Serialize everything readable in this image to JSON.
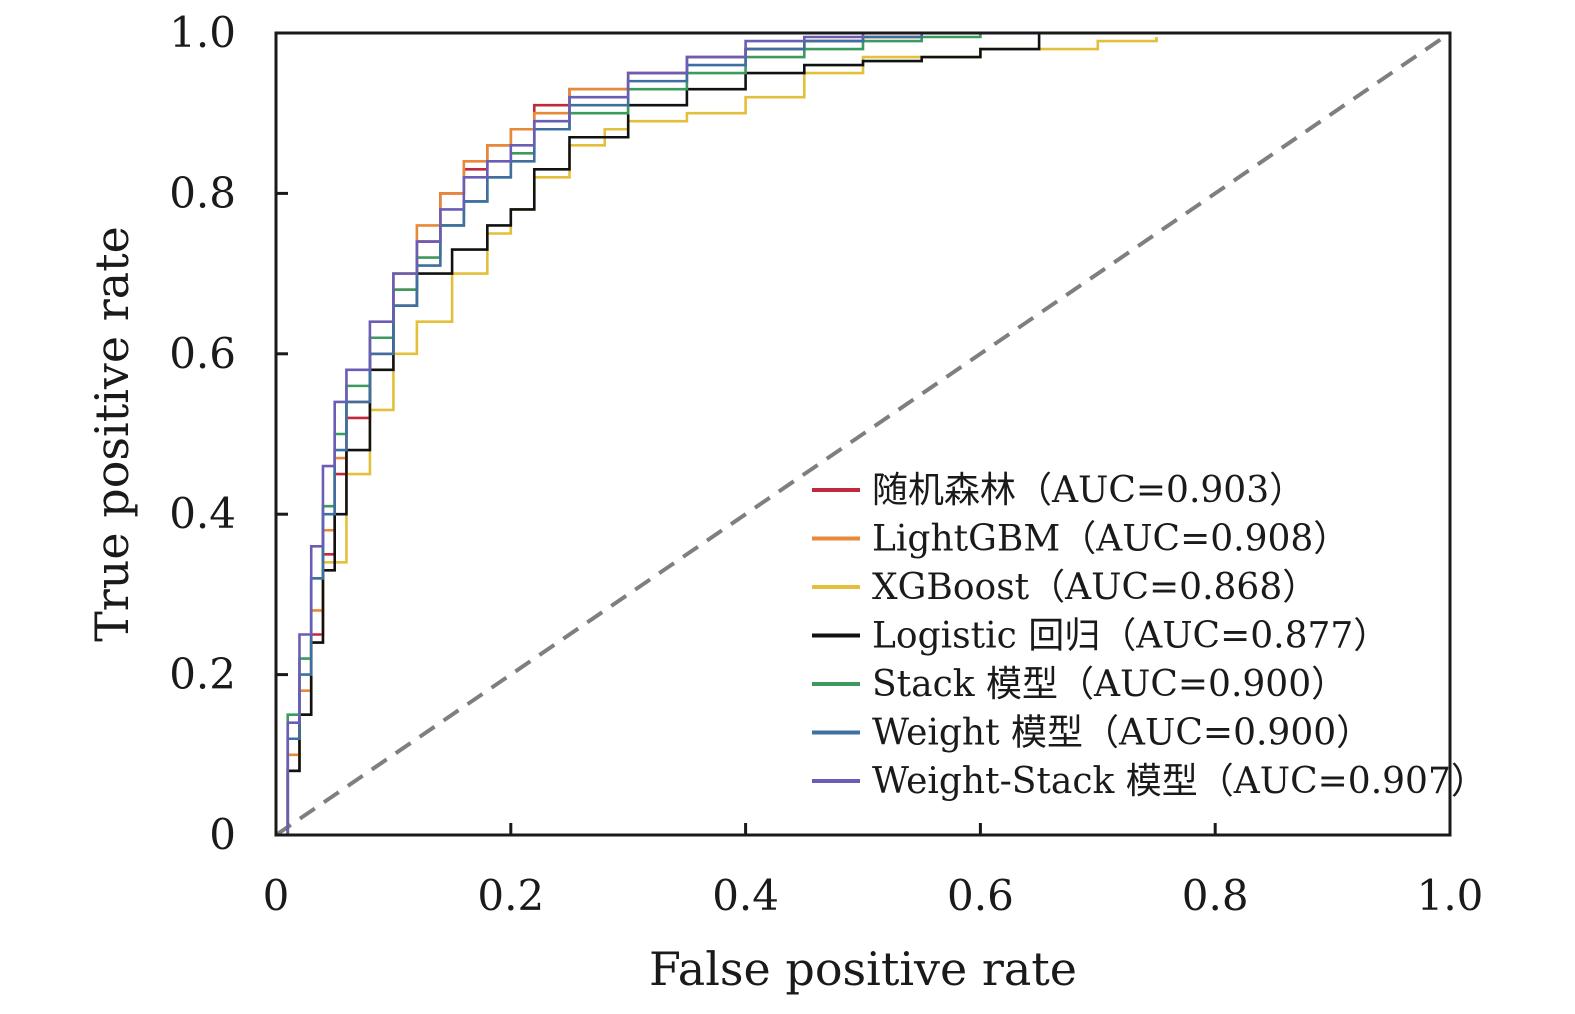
{
  "chart_data": {
    "type": "line",
    "title": "",
    "xlabel": "False positive rate",
    "ylabel": "True positive rate",
    "xlim": [
      0,
      1.0
    ],
    "ylim": [
      0,
      1.0
    ],
    "x_ticks": [
      0,
      0.2,
      0.4,
      0.6,
      0.8,
      1.0
    ],
    "y_ticks": [
      0,
      0.2,
      0.4,
      0.6,
      0.8,
      1.0
    ],
    "x_tick_labels": [
      "0",
      "0.2",
      "0.4",
      "0.6",
      "0.8",
      "1.0"
    ],
    "y_tick_labels": [
      "0",
      "0.2",
      "0.4",
      "0.6",
      "0.8",
      "1.0"
    ],
    "grid": false,
    "legend_position": "bottom-right",
    "reference_line": {
      "x": [
        0,
        1
      ],
      "y": [
        0,
        1
      ],
      "style": "dashed",
      "color": "#7f7f7f"
    },
    "series": [
      {
        "name": "随机森林（AUC=0.903）",
        "color": "#c0283c",
        "x": [
          0,
          0.01,
          0.02,
          0.03,
          0.04,
          0.05,
          0.06,
          0.08,
          0.1,
          0.12,
          0.14,
          0.16,
          0.18,
          0.2,
          0.22,
          0.25,
          0.3,
          0.35,
          0.4,
          0.45,
          0.5,
          0.55,
          0.6
        ],
        "y": [
          0,
          0.08,
          0.15,
          0.25,
          0.35,
          0.45,
          0.52,
          0.6,
          0.68,
          0.74,
          0.8,
          0.83,
          0.86,
          0.88,
          0.91,
          0.93,
          0.95,
          0.97,
          0.98,
          0.99,
          0.995,
          1.0,
          1.0
        ]
      },
      {
        "name": "LightGBM（AUC=0.908）",
        "color": "#e8893a",
        "x": [
          0,
          0.01,
          0.02,
          0.03,
          0.04,
          0.05,
          0.06,
          0.08,
          0.1,
          0.12,
          0.14,
          0.16,
          0.18,
          0.2,
          0.22,
          0.25,
          0.3,
          0.35,
          0.4,
          0.45,
          0.5,
          0.55,
          0.6
        ],
        "y": [
          0,
          0.1,
          0.18,
          0.28,
          0.38,
          0.47,
          0.54,
          0.62,
          0.7,
          0.76,
          0.8,
          0.84,
          0.86,
          0.88,
          0.9,
          0.93,
          0.95,
          0.97,
          0.98,
          0.99,
          0.995,
          1.0,
          1.0
        ]
      },
      {
        "name": "XGBoost（AUC=0.868）",
        "color": "#e3bf3b",
        "x": [
          0,
          0.01,
          0.02,
          0.03,
          0.04,
          0.06,
          0.08,
          0.1,
          0.12,
          0.15,
          0.18,
          0.2,
          0.22,
          0.25,
          0.28,
          0.3,
          0.35,
          0.4,
          0.45,
          0.5,
          0.55,
          0.6,
          0.65,
          0.7,
          0.75
        ],
        "y": [
          0,
          0.08,
          0.15,
          0.24,
          0.34,
          0.45,
          0.53,
          0.6,
          0.64,
          0.7,
          0.75,
          0.78,
          0.82,
          0.86,
          0.88,
          0.89,
          0.9,
          0.92,
          0.95,
          0.97,
          0.97,
          0.98,
          0.98,
          0.99,
          0.995
        ]
      },
      {
        "name": "Logistic 回归（AUC=0.877）",
        "color": "#111111",
        "x": [
          0,
          0.01,
          0.02,
          0.03,
          0.04,
          0.05,
          0.06,
          0.08,
          0.1,
          0.12,
          0.15,
          0.18,
          0.2,
          0.22,
          0.25,
          0.3,
          0.35,
          0.4,
          0.45,
          0.5,
          0.55,
          0.6,
          0.65
        ],
        "y": [
          0,
          0.08,
          0.15,
          0.24,
          0.33,
          0.4,
          0.48,
          0.58,
          0.66,
          0.7,
          0.73,
          0.76,
          0.78,
          0.83,
          0.87,
          0.91,
          0.93,
          0.95,
          0.96,
          0.965,
          0.97,
          0.98,
          1.0
        ]
      },
      {
        "name": "Stack 模型（AUC=0.900）",
        "color": "#3c9a5f",
        "x": [
          0,
          0.01,
          0.02,
          0.03,
          0.04,
          0.05,
          0.06,
          0.08,
          0.1,
          0.12,
          0.14,
          0.16,
          0.18,
          0.2,
          0.22,
          0.25,
          0.3,
          0.35,
          0.4,
          0.45,
          0.5,
          0.55,
          0.6
        ],
        "y": [
          0,
          0.15,
          0.22,
          0.32,
          0.41,
          0.5,
          0.56,
          0.62,
          0.68,
          0.72,
          0.76,
          0.79,
          0.82,
          0.85,
          0.88,
          0.9,
          0.93,
          0.95,
          0.97,
          0.98,
          0.99,
          0.995,
          1.0
        ]
      },
      {
        "name": "Weight 模型（AUC=0.900）",
        "color": "#3f6fa0",
        "x": [
          0,
          0.01,
          0.02,
          0.03,
          0.04,
          0.05,
          0.06,
          0.08,
          0.1,
          0.12,
          0.14,
          0.16,
          0.18,
          0.2,
          0.22,
          0.25,
          0.3,
          0.35,
          0.4,
          0.45,
          0.5,
          0.55
        ],
        "y": [
          0,
          0.12,
          0.2,
          0.32,
          0.4,
          0.48,
          0.54,
          0.6,
          0.66,
          0.71,
          0.76,
          0.79,
          0.82,
          0.84,
          0.88,
          0.91,
          0.94,
          0.96,
          0.98,
          0.99,
          0.995,
          1.0
        ]
      },
      {
        "name": "Weight-Stack 模型（AUC=0.907）",
        "color": "#6a5db5",
        "x": [
          0,
          0.01,
          0.02,
          0.03,
          0.04,
          0.05,
          0.06,
          0.08,
          0.1,
          0.12,
          0.14,
          0.16,
          0.18,
          0.2,
          0.22,
          0.25,
          0.3,
          0.35,
          0.4,
          0.45,
          0.5,
          0.55
        ],
        "y": [
          0,
          0.14,
          0.25,
          0.36,
          0.46,
          0.54,
          0.58,
          0.64,
          0.7,
          0.74,
          0.78,
          0.82,
          0.84,
          0.86,
          0.89,
          0.92,
          0.95,
          0.97,
          0.99,
          0.995,
          1.0,
          1.0
        ]
      }
    ]
  }
}
